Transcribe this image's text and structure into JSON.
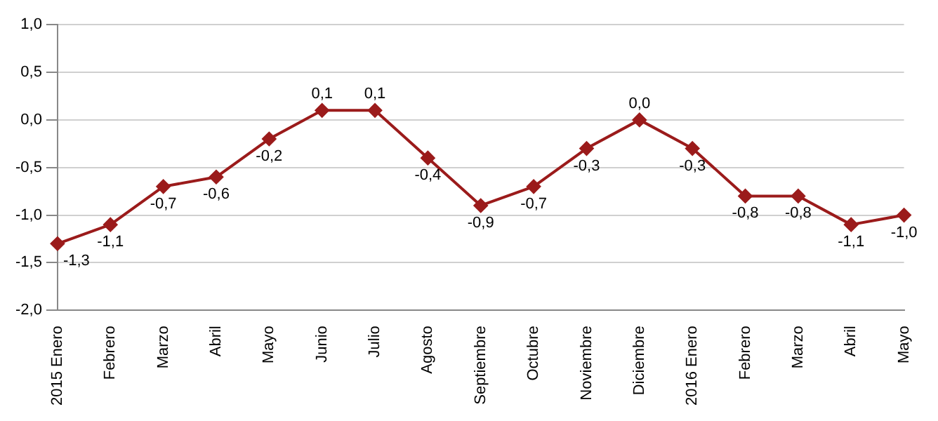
{
  "chart_data": {
    "type": "line",
    "categories": [
      "2015 Enero",
      "Febrero",
      "Marzo",
      "Abril",
      "Mayo",
      "Junio",
      "Julio",
      "Agosto",
      "Septiembre",
      "Octubre",
      "Noviembre",
      "Diciembre",
      "2016 Enero",
      "Febrero",
      "Marzo",
      "Abril",
      "Mayo"
    ],
    "series": [
      {
        "color": "#9b1b1b",
        "values": [
          -1.3,
          -1.1,
          -0.7,
          -0.6,
          -0.2,
          0.1,
          0.1,
          -0.4,
          -0.9,
          -0.7,
          -0.3,
          0.0,
          -0.3,
          -0.8,
          -0.8,
          -1.1,
          -1.0
        ],
        "value_labels": [
          "-1,3",
          "-1,1",
          "-0,7",
          "-0,6",
          "-0,2",
          "0,1",
          "0,1",
          "-0,4",
          "-0,9",
          "-0,7",
          "-0,3",
          "0,0",
          "-0,3",
          "-0,8",
          "-0,8",
          "-1,1",
          "-1,0"
        ]
      }
    ],
    "ylim": [
      -2,
      1
    ],
    "yticks": [
      {
        "value": -2,
        "label": "-2,0"
      },
      {
        "value": -1.5,
        "label": "-1,5"
      },
      {
        "value": -1,
        "label": "-1,0"
      },
      {
        "value": -0.5,
        "label": "-0,5"
      },
      {
        "value": 0,
        "label": "0,0"
      },
      {
        "value": 0.5,
        "label": "0,5"
      },
      {
        "value": 1,
        "label": "1,0"
      }
    ],
    "grid": "y",
    "legend": false,
    "marker": "diamond",
    "line_style": "solid"
  }
}
